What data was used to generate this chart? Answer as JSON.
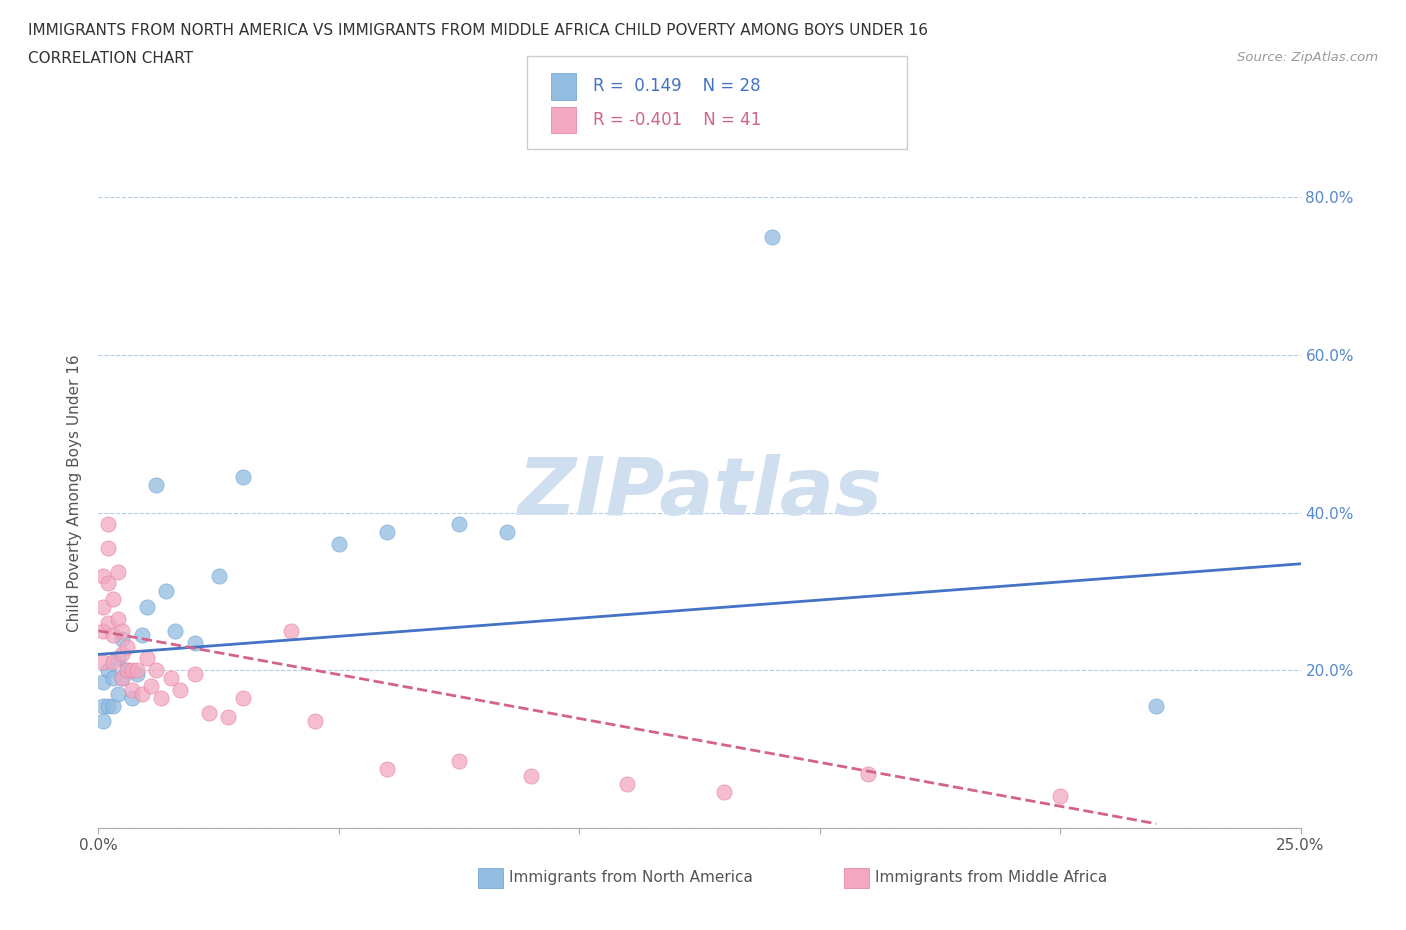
{
  "title_line1": "IMMIGRANTS FROM NORTH AMERICA VS IMMIGRANTS FROM MIDDLE AFRICA CHILD POVERTY AMONG BOYS UNDER 16",
  "title_line2": "CORRELATION CHART",
  "source_text": "Source: ZipAtlas.com",
  "ylabel": "Child Poverty Among Boys Under 16",
  "x_min": 0.0,
  "x_max": 0.25,
  "y_min": 0.0,
  "y_max": 0.85,
  "north_america_R": 0.149,
  "north_america_N": 28,
  "middle_africa_R": -0.401,
  "middle_africa_N": 41,
  "north_america_color": "#92bce0",
  "middle_africa_color": "#f2a8c0",
  "north_america_edge_color": "#6a9fd8",
  "middle_africa_edge_color": "#e87aa0",
  "north_america_line_color": "#4472c4",
  "middle_africa_line_color": "#d4638a",
  "watermark_color": "#d0dff0",
  "background_color": "#ffffff",
  "grid_color": "#b8cce0",
  "legend_border_color": "#cccccc",
  "north_america_x": [
    0.001,
    0.001,
    0.001,
    0.002,
    0.002,
    0.003,
    0.003,
    0.004,
    0.004,
    0.005,
    0.005,
    0.006,
    0.007,
    0.008,
    0.009,
    0.01,
    0.012,
    0.014,
    0.016,
    0.02,
    0.025,
    0.03,
    0.05,
    0.06,
    0.075,
    0.085,
    0.14,
    0.22
  ],
  "north_america_y": [
    0.155,
    0.185,
    0.135,
    0.2,
    0.155,
    0.19,
    0.155,
    0.215,
    0.17,
    0.24,
    0.19,
    0.2,
    0.165,
    0.195,
    0.245,
    0.28,
    0.435,
    0.3,
    0.25,
    0.235,
    0.32,
    0.445,
    0.36,
    0.375,
    0.385,
    0.375,
    0.75,
    0.155
  ],
  "middle_africa_x": [
    0.001,
    0.001,
    0.001,
    0.001,
    0.002,
    0.002,
    0.002,
    0.002,
    0.003,
    0.003,
    0.003,
    0.004,
    0.004,
    0.005,
    0.005,
    0.005,
    0.006,
    0.006,
    0.007,
    0.007,
    0.008,
    0.009,
    0.01,
    0.011,
    0.012,
    0.013,
    0.015,
    0.017,
    0.02,
    0.023,
    0.027,
    0.03,
    0.04,
    0.045,
    0.06,
    0.075,
    0.09,
    0.11,
    0.13,
    0.16,
    0.2
  ],
  "middle_africa_y": [
    0.25,
    0.28,
    0.32,
    0.21,
    0.26,
    0.31,
    0.355,
    0.385,
    0.21,
    0.245,
    0.29,
    0.325,
    0.265,
    0.22,
    0.25,
    0.19,
    0.2,
    0.23,
    0.2,
    0.175,
    0.2,
    0.17,
    0.215,
    0.18,
    0.2,
    0.165,
    0.19,
    0.175,
    0.195,
    0.145,
    0.14,
    0.165,
    0.25,
    0.135,
    0.075,
    0.085,
    0.065,
    0.055,
    0.045,
    0.068,
    0.04
  ],
  "na_trend_x0": 0.0,
  "na_trend_x1": 0.25,
  "na_trend_y0": 0.22,
  "na_trend_y1": 0.335,
  "ma_trend_x0": 0.0,
  "ma_trend_x1": 0.22,
  "ma_trend_y0": 0.25,
  "ma_trend_y1": 0.005
}
